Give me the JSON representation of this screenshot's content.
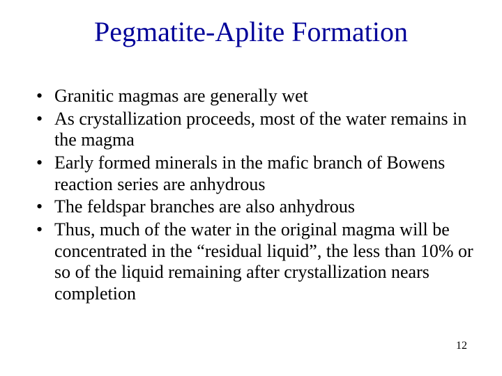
{
  "title": "Pegmatite-Aplite Formation",
  "title_color": "#000099",
  "background_color": "#ffffff",
  "body_color": "#000000",
  "title_fontsize": 40,
  "body_fontsize": 26,
  "pagenum_fontsize": 16,
  "bullets": [
    "Granitic magmas are generally wet",
    "As crystallization proceeds, most of the water remains in the magma",
    "Early formed minerals in the mafic branch of Bowens reaction series are anhydrous",
    "The feldspar branches are also anhydrous",
    "Thus, much of the water in the original magma will be concentrated in the “residual liquid”, the less than 10% or so of the liquid remaining after crystallization nears completion"
  ],
  "page_number": "12"
}
